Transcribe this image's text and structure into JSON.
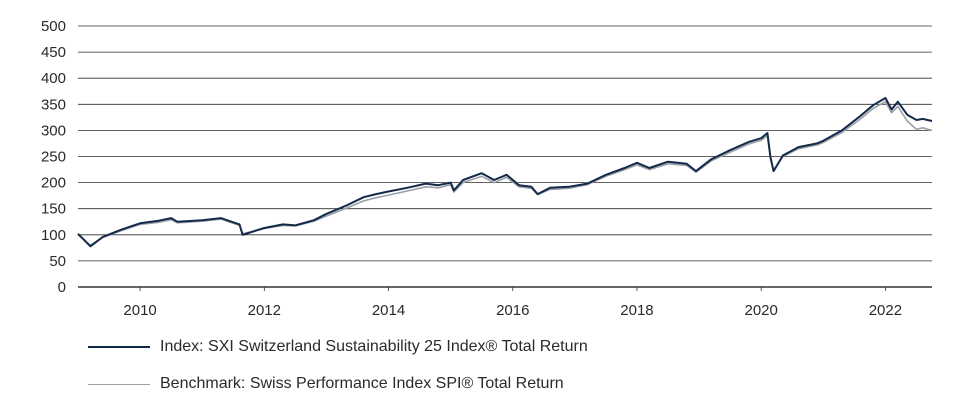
{
  "chart_data": {
    "type": "line",
    "title": "",
    "xlabel": "",
    "ylabel": "",
    "ylim": [
      0,
      500
    ],
    "xlim": [
      2009.0,
      2022.75
    ],
    "y_ticks": [
      0,
      50,
      100,
      150,
      200,
      250,
      300,
      350,
      400,
      450,
      500
    ],
    "x_ticks": [
      2010,
      2012,
      2014,
      2016,
      2018,
      2020,
      2022
    ],
    "grid": "horizontal",
    "legend_position": "bottom",
    "series": [
      {
        "name": "Index: SXI Switzerland Sustainability 25 Index® Total Return",
        "color": "#14294a",
        "points": [
          [
            2009.0,
            102
          ],
          [
            2009.2,
            78
          ],
          [
            2009.4,
            96
          ],
          [
            2009.7,
            110
          ],
          [
            2010.0,
            122
          ],
          [
            2010.3,
            127
          ],
          [
            2010.5,
            132
          ],
          [
            2010.6,
            125
          ],
          [
            2011.0,
            128
          ],
          [
            2011.3,
            132
          ],
          [
            2011.6,
            120
          ],
          [
            2011.65,
            100
          ],
          [
            2012.0,
            113
          ],
          [
            2012.3,
            120
          ],
          [
            2012.5,
            118
          ],
          [
            2012.8,
            128
          ],
          [
            2013.0,
            140
          ],
          [
            2013.3,
            155
          ],
          [
            2013.6,
            172
          ],
          [
            2013.8,
            178
          ],
          [
            2014.0,
            183
          ],
          [
            2014.3,
            190
          ],
          [
            2014.6,
            198
          ],
          [
            2014.8,
            195
          ],
          [
            2015.0,
            200
          ],
          [
            2015.05,
            185
          ],
          [
            2015.2,
            205
          ],
          [
            2015.5,
            218
          ],
          [
            2015.7,
            205
          ],
          [
            2015.9,
            215
          ],
          [
            2016.1,
            195
          ],
          [
            2016.3,
            192
          ],
          [
            2016.4,
            178
          ],
          [
            2016.6,
            190
          ],
          [
            2016.9,
            192
          ],
          [
            2017.2,
            198
          ],
          [
            2017.5,
            215
          ],
          [
            2017.8,
            228
          ],
          [
            2018.0,
            238
          ],
          [
            2018.2,
            228
          ],
          [
            2018.5,
            240
          ],
          [
            2018.8,
            236
          ],
          [
            2018.95,
            222
          ],
          [
            2019.2,
            245
          ],
          [
            2019.5,
            262
          ],
          [
            2019.8,
            278
          ],
          [
            2020.0,
            285
          ],
          [
            2020.1,
            295
          ],
          [
            2020.15,
            248
          ],
          [
            2020.2,
            222
          ],
          [
            2020.35,
            252
          ],
          [
            2020.6,
            268
          ],
          [
            2020.9,
            275
          ],
          [
            2021.0,
            280
          ],
          [
            2021.3,
            300
          ],
          [
            2021.6,
            328
          ],
          [
            2021.8,
            348
          ],
          [
            2022.0,
            362
          ],
          [
            2022.1,
            340
          ],
          [
            2022.2,
            355
          ],
          [
            2022.35,
            330
          ],
          [
            2022.5,
            320
          ],
          [
            2022.6,
            322
          ],
          [
            2022.75,
            318
          ]
        ]
      },
      {
        "name": "Benchmark: Swiss Performance Index SPI® Total Return",
        "color": "#9aa0a6",
        "points": [
          [
            2009.0,
            100
          ],
          [
            2009.2,
            80
          ],
          [
            2009.4,
            95
          ],
          [
            2009.7,
            108
          ],
          [
            2010.0,
            120
          ],
          [
            2010.3,
            124
          ],
          [
            2010.5,
            129
          ],
          [
            2010.6,
            123
          ],
          [
            2011.0,
            126
          ],
          [
            2011.3,
            130
          ],
          [
            2011.6,
            118
          ],
          [
            2011.65,
            102
          ],
          [
            2012.0,
            112
          ],
          [
            2012.3,
            118
          ],
          [
            2012.5,
            117
          ],
          [
            2012.8,
            126
          ],
          [
            2013.0,
            136
          ],
          [
            2013.3,
            150
          ],
          [
            2013.6,
            165
          ],
          [
            2013.8,
            171
          ],
          [
            2014.0,
            176
          ],
          [
            2014.3,
            184
          ],
          [
            2014.6,
            192
          ],
          [
            2014.8,
            190
          ],
          [
            2015.0,
            196
          ],
          [
            2015.05,
            182
          ],
          [
            2015.2,
            200
          ],
          [
            2015.5,
            212
          ],
          [
            2015.7,
            200
          ],
          [
            2015.9,
            210
          ],
          [
            2016.1,
            192
          ],
          [
            2016.3,
            189
          ],
          [
            2016.4,
            177
          ],
          [
            2016.6,
            187
          ],
          [
            2016.9,
            189
          ],
          [
            2017.2,
            196
          ],
          [
            2017.5,
            212
          ],
          [
            2017.8,
            225
          ],
          [
            2018.0,
            234
          ],
          [
            2018.2,
            225
          ],
          [
            2018.5,
            236
          ],
          [
            2018.8,
            233
          ],
          [
            2018.95,
            220
          ],
          [
            2019.2,
            242
          ],
          [
            2019.5,
            258
          ],
          [
            2019.8,
            274
          ],
          [
            2020.0,
            281
          ],
          [
            2020.1,
            290
          ],
          [
            2020.15,
            246
          ],
          [
            2020.2,
            224
          ],
          [
            2020.35,
            250
          ],
          [
            2020.6,
            265
          ],
          [
            2020.9,
            272
          ],
          [
            2021.0,
            277
          ],
          [
            2021.3,
            296
          ],
          [
            2021.6,
            322
          ],
          [
            2021.8,
            342
          ],
          [
            2022.0,
            355
          ],
          [
            2022.1,
            334
          ],
          [
            2022.2,
            346
          ],
          [
            2022.35,
            318
          ],
          [
            2022.5,
            302
          ],
          [
            2022.6,
            305
          ],
          [
            2022.75,
            300
          ]
        ]
      }
    ]
  }
}
